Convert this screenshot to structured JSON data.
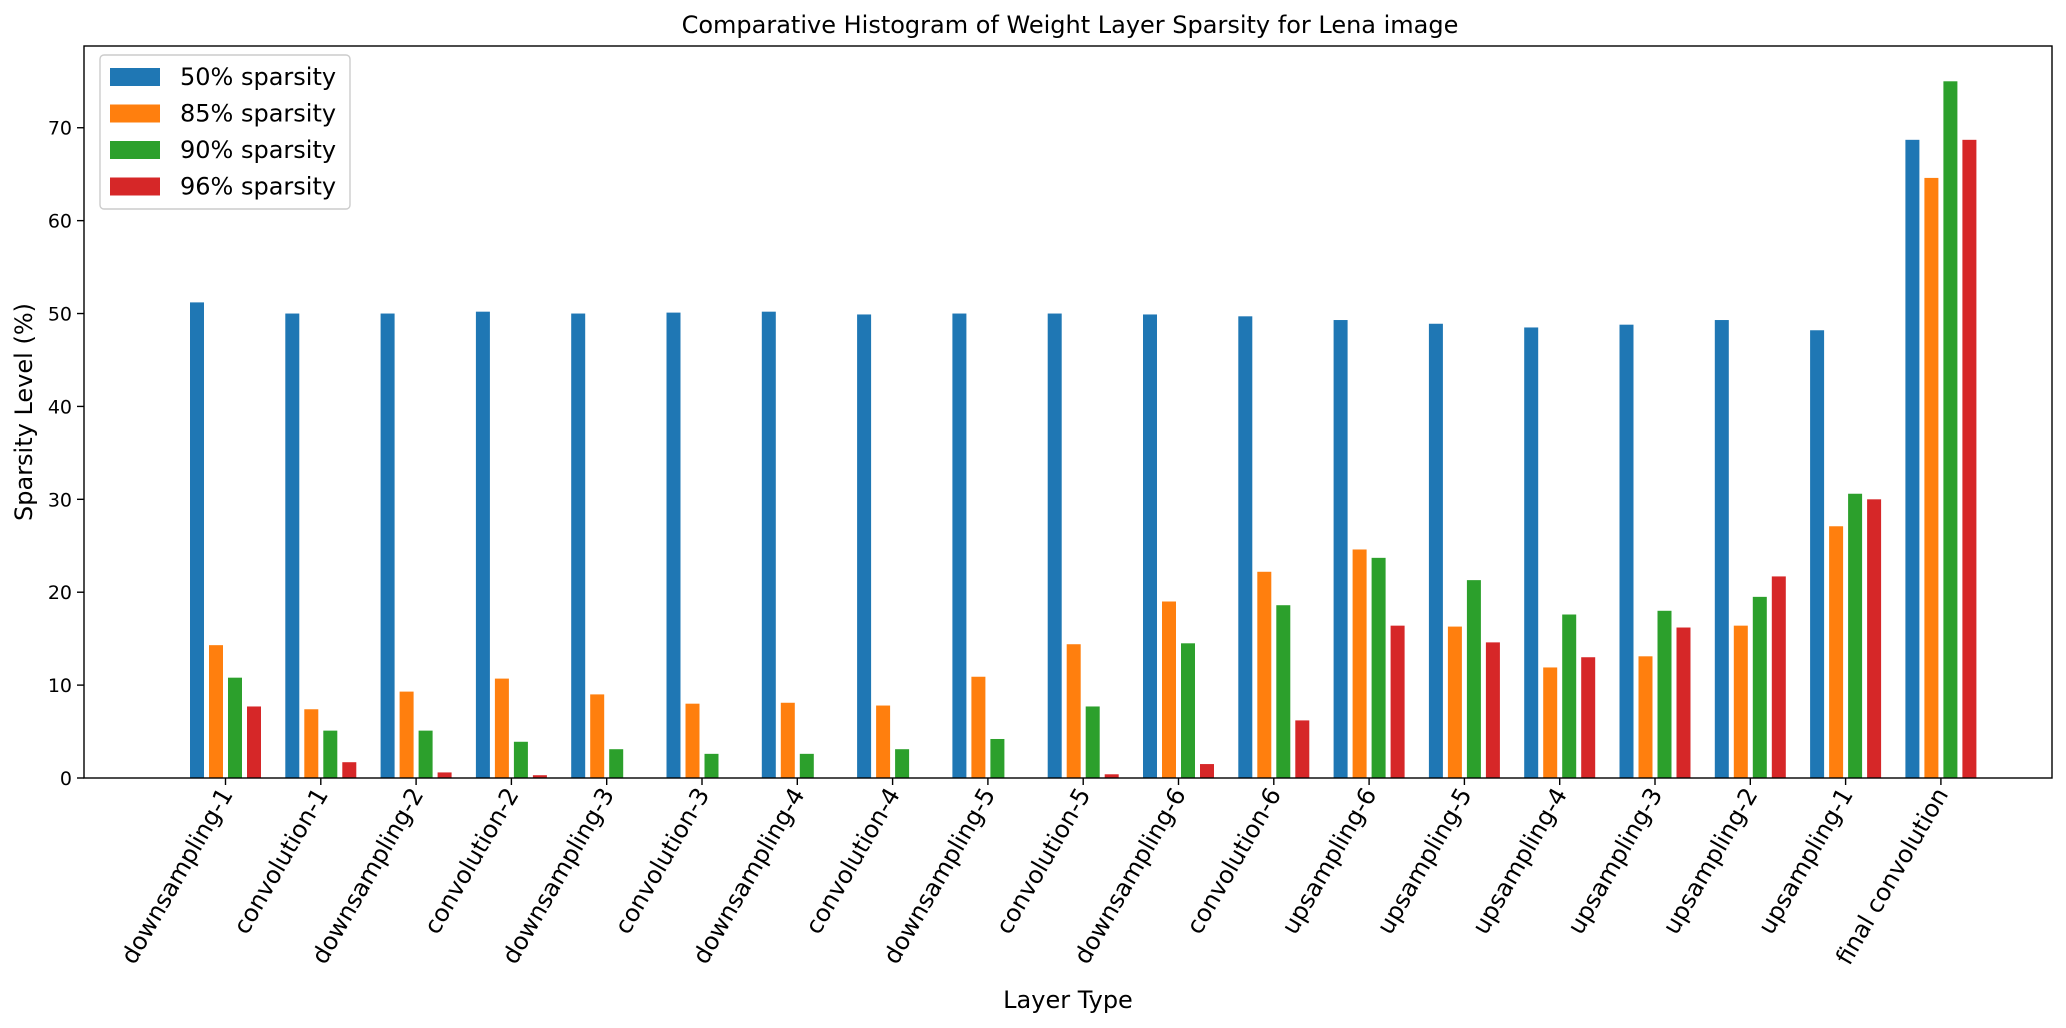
{
  "chart_data": {
    "type": "bar",
    "title": "Comparative Histogram of Weight Layer Sparsity for Lena image",
    "xlabel": "Layer Type",
    "ylabel": "Sparsity Level (%)",
    "ylim": [
      0,
      78.8
    ],
    "yticks": [
      0,
      10,
      20,
      30,
      40,
      50,
      60,
      70
    ],
    "grid": false,
    "legend_position": "top-left",
    "categories": [
      "downsampling-1",
      "convolution-1",
      "downsampling-2",
      "convolution-2",
      "downsampling-3",
      "convolution-3",
      "downsampling-4",
      "convolution-4",
      "downsampling-5",
      "convolution-5",
      "downsampling-6",
      "convolution-6",
      "upsampling-6",
      "upsampling-5",
      "upsampling-4",
      "upsampling-3",
      "upsampling-2",
      "upsampling-1",
      "final convolution"
    ],
    "series": [
      {
        "name": "50% sparsity",
        "color": "#1f77b4",
        "values": [
          51.2,
          50.0,
          50.0,
          50.2,
          50.0,
          50.1,
          50.2,
          49.9,
          50.0,
          50.0,
          49.9,
          49.7,
          49.3,
          48.9,
          48.5,
          48.8,
          49.3,
          48.2,
          68.7
        ]
      },
      {
        "name": "85% sparsity",
        "color": "#ff7f0e",
        "values": [
          14.3,
          7.4,
          9.3,
          10.7,
          9.0,
          8.0,
          8.1,
          7.8,
          10.9,
          14.4,
          19.0,
          22.2,
          24.6,
          16.3,
          11.9,
          13.1,
          16.4,
          27.1,
          64.6
        ]
      },
      {
        "name": "90% sparsity",
        "color": "#2ca02c",
        "values": [
          10.8,
          5.1,
          5.1,
          3.9,
          3.1,
          2.6,
          2.6,
          3.1,
          4.2,
          7.7,
          14.5,
          18.6,
          23.7,
          21.3,
          17.6,
          18.0,
          19.5,
          30.6,
          75.0
        ]
      },
      {
        "name": "96% sparsity",
        "color": "#d62728",
        "values": [
          7.7,
          1.7,
          0.6,
          0.3,
          0.0,
          0.0,
          0.0,
          0.0,
          0.0,
          0.4,
          1.5,
          6.2,
          16.4,
          14.6,
          13.0,
          16.2,
          21.7,
          30.0,
          68.7
        ]
      }
    ]
  }
}
